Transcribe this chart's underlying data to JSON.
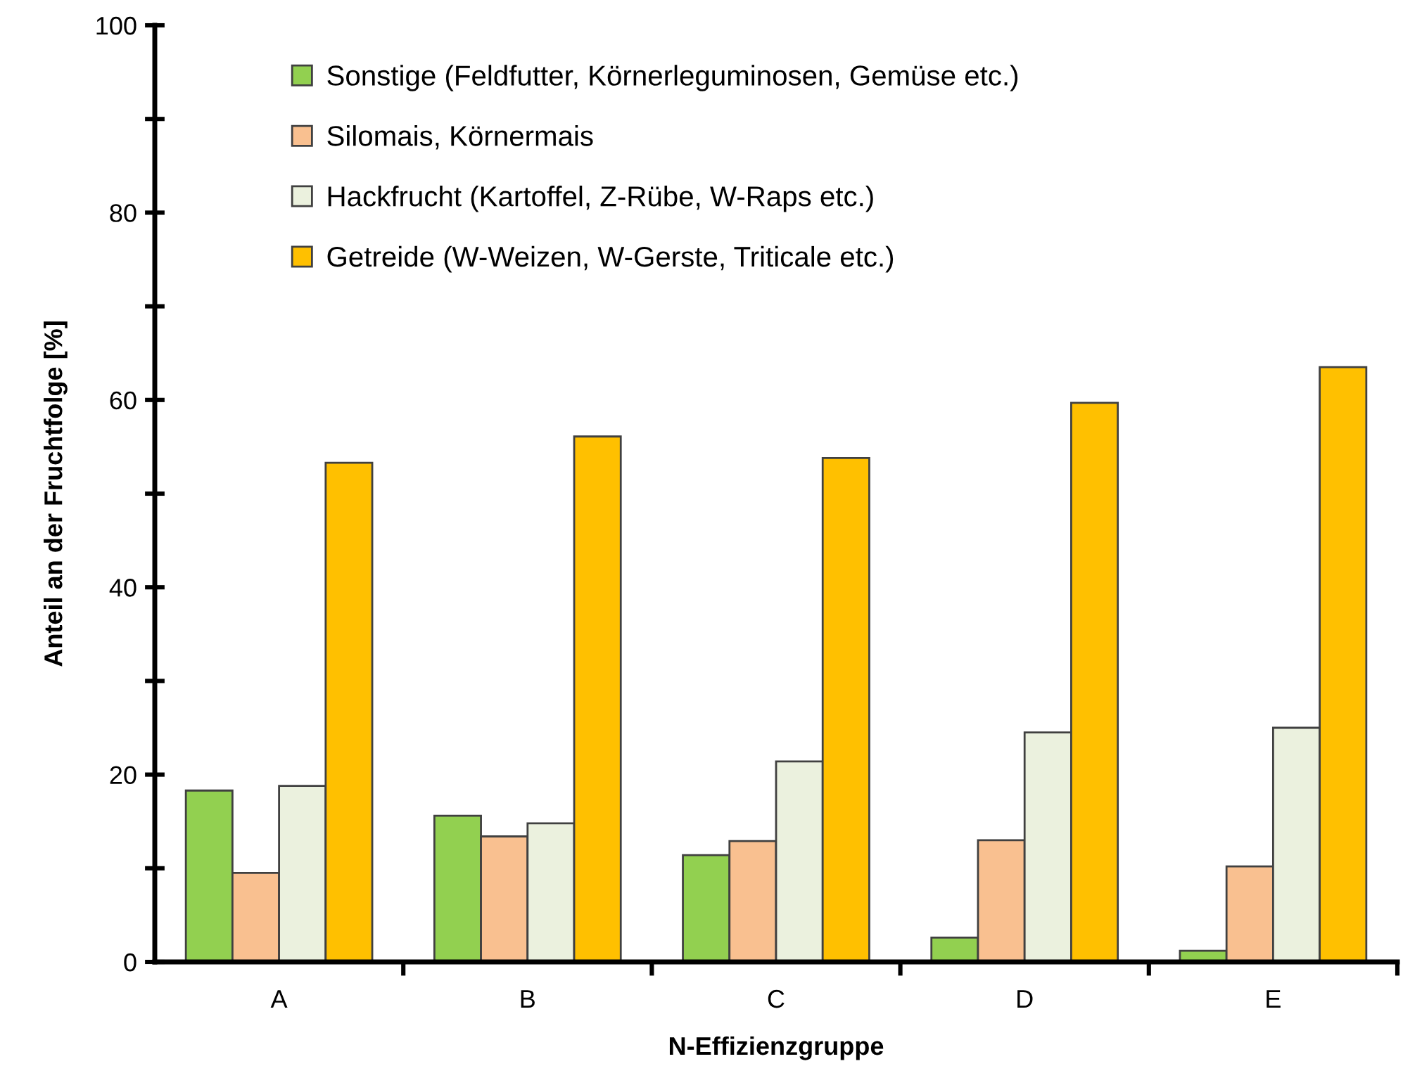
{
  "chart_data": {
    "type": "bar",
    "xlabel": "N-Effizienzgruppe",
    "ylabel": "Anteil an der Fruchtfolge [%]",
    "categories": [
      "A",
      "B",
      "C",
      "D",
      "E"
    ],
    "series": [
      {
        "name": "Sonstige (Feldfutter, Körnerleguminosen, Gemüse etc.)",
        "color": "#92d050",
        "values": [
          18.3,
          15.6,
          11.4,
          2.6,
          1.2
        ]
      },
      {
        "name": "Silomais, Körnermais",
        "color": "#f9c090",
        "values": [
          9.5,
          13.4,
          12.9,
          13.0,
          10.2
        ]
      },
      {
        "name": "Hackfrucht (Kartoffel, Z-Rübe, W-Raps etc.)",
        "color": "#ebf1de",
        "values": [
          18.8,
          14.8,
          21.4,
          24.5,
          25.0
        ]
      },
      {
        "name": "Getreide (W-Weizen, W-Gerste, Triticale etc.)",
        "color": "#ffc000",
        "values": [
          53.3,
          56.1,
          53.8,
          59.7,
          63.5
        ]
      }
    ],
    "ylim": [
      0,
      100
    ],
    "yticks": [
      0,
      {
        "value": 10,
        "label": null
      },
      20,
      {
        "value": 30,
        "label": null
      },
      40,
      {
        "value": 50,
        "label": null
      },
      60,
      {
        "value": 70,
        "label": null
      },
      80,
      {
        "value": 90,
        "label": null
      },
      100
    ],
    "legend": "top left",
    "grid": false
  }
}
